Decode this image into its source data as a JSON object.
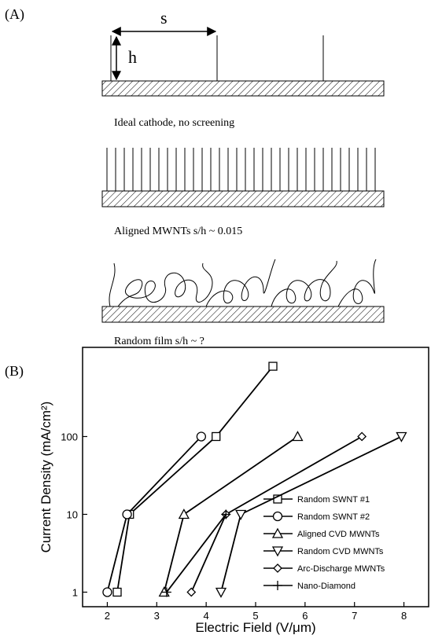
{
  "panel_a": {
    "label": "(A)",
    "s_label": "s",
    "h_label": "h",
    "captions": [
      "Ideal cathode, no screening",
      "Aligned MWNTs s/h ~ 0.015",
      "Random film s/h ~ ?"
    ]
  },
  "chart_data": {
    "type": "line",
    "panel_label": "(B)",
    "x_label": "Electric Field (V/μm)",
    "y_label": "Current Density (mA/cm²)",
    "xlim": [
      1.5,
      8.5
    ],
    "xticks": [
      2,
      3,
      4,
      5,
      6,
      7,
      8
    ],
    "ylim": [
      0.65,
      1400
    ],
    "yticks": [
      1,
      10,
      100
    ],
    "y_log": true,
    "legend": "lower right",
    "series": [
      {
        "name": "Random SWNT #1",
        "marker": "square",
        "color": "#000000",
        "x": [
          2.2,
          2.45,
          4.2,
          5.35
        ],
        "values": [
          1,
          10,
          100,
          800
        ]
      },
      {
        "name": "Random SWNT #2",
        "marker": "circle",
        "color": "#000000",
        "x": [
          2.0,
          2.4,
          3.9
        ],
        "values": [
          1,
          10,
          100
        ]
      },
      {
        "name": "Aligned CVD MWNTs",
        "marker": "triangle-up",
        "color": "#000000",
        "x": [
          3.15,
          3.55,
          5.85
        ],
        "values": [
          1,
          10,
          100
        ]
      },
      {
        "name": "Random CVD MWNTs",
        "marker": "triangle-down",
        "color": "#000000",
        "x": [
          4.3,
          4.7,
          7.95
        ],
        "values": [
          1,
          10,
          100
        ]
      },
      {
        "name": "Arc-Discharge MWNTs",
        "marker": "diamond",
        "color": "#000000",
        "x": [
          3.7,
          4.4,
          7.15
        ],
        "values": [
          1,
          10,
          100
        ]
      },
      {
        "name": "Nano-Diamond",
        "marker": "plus",
        "color": "#000000",
        "x": [
          3.2,
          4.4
        ],
        "values": [
          1,
          10
        ]
      }
    ]
  }
}
